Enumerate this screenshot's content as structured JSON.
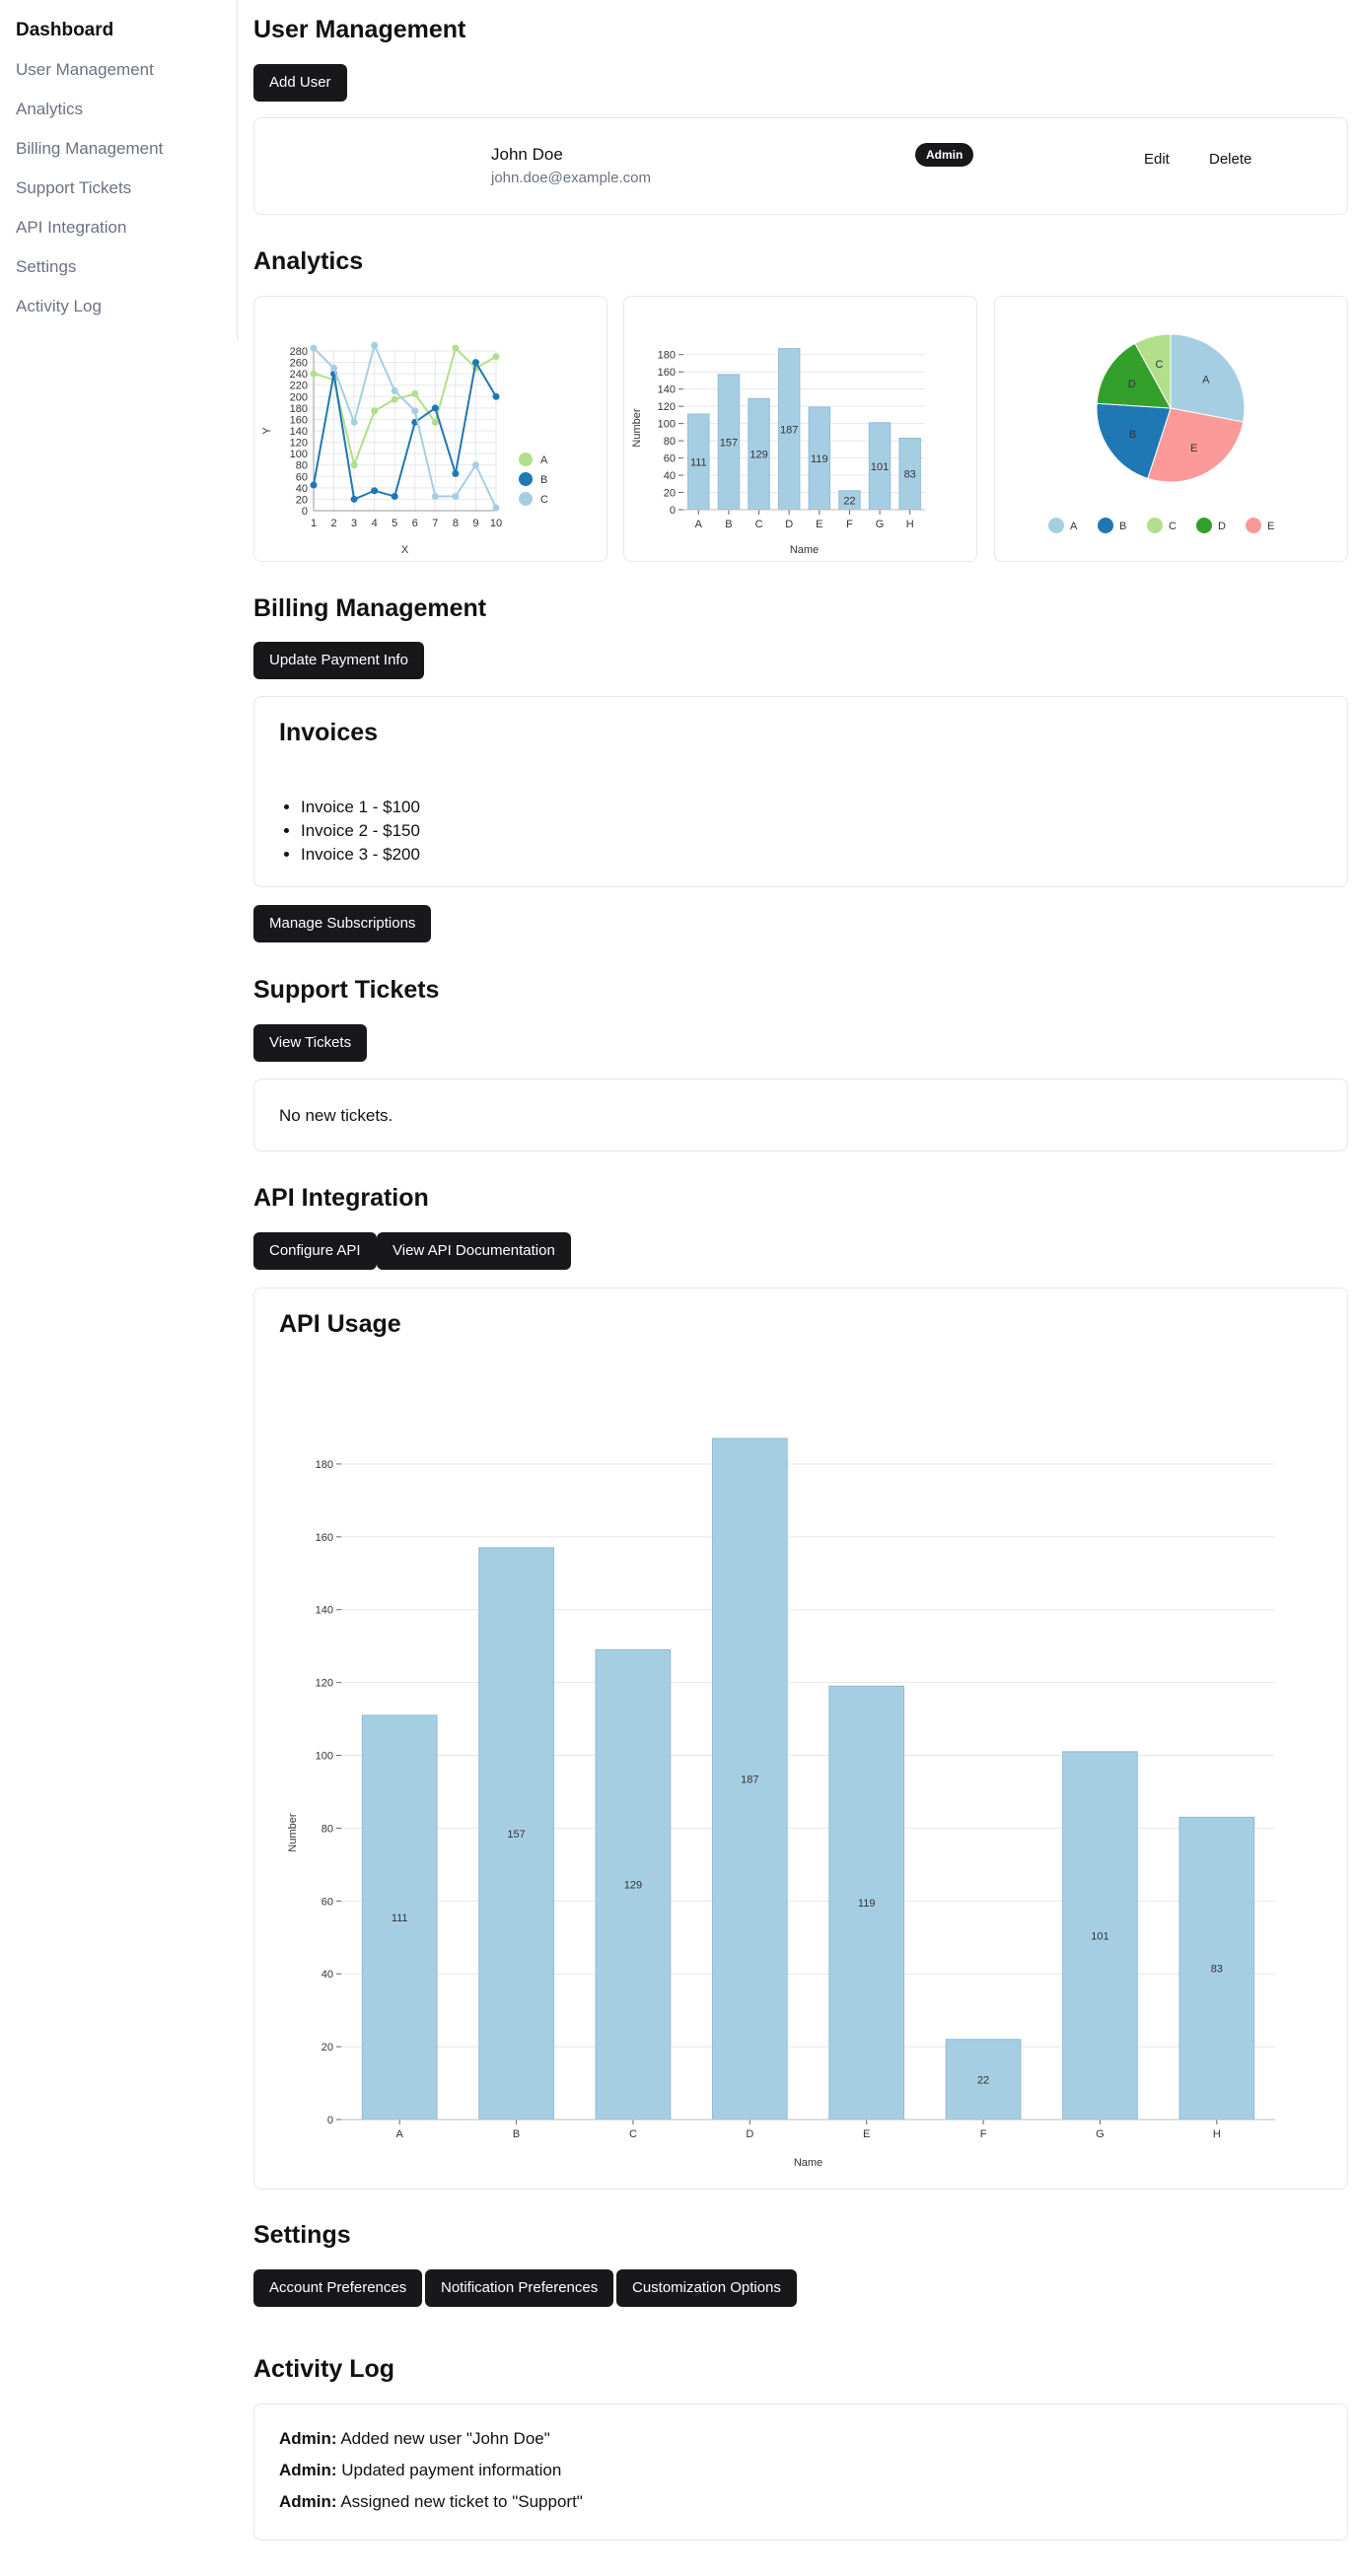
{
  "sidebar": {
    "brand": "Dashboard",
    "items": [
      {
        "label": "User Management"
      },
      {
        "label": "Analytics"
      },
      {
        "label": "Billing Management"
      },
      {
        "label": "Support Tickets"
      },
      {
        "label": "API Integration"
      },
      {
        "label": "Settings"
      },
      {
        "label": "Activity Log"
      }
    ]
  },
  "user_management": {
    "title": "User Management",
    "add_user_label": "Add User",
    "user": {
      "name": "John Doe",
      "email": "john.doe@example.com",
      "role": "Admin",
      "edit_label": "Edit",
      "delete_label": "Delete"
    }
  },
  "analytics": {
    "title": "Analytics"
  },
  "billing": {
    "title": "Billing Management",
    "update_payment_label": "Update Payment Info",
    "invoices_title": "Invoices",
    "invoices": [
      "Invoice 1 - $100",
      "Invoice 2 - $150",
      "Invoice 3 - $200"
    ],
    "manage_subscriptions_label": "Manage Subscriptions"
  },
  "support": {
    "title": "Support Tickets",
    "view_tickets_label": "View Tickets",
    "status_text": "No new tickets."
  },
  "api": {
    "title": "API Integration",
    "configure_label": "Configure API",
    "docs_label": "View API Documentation",
    "usage_title": "API Usage"
  },
  "settings": {
    "title": "Settings",
    "buttons": [
      "Account Preferences",
      "Notification Preferences",
      "Customization Options"
    ]
  },
  "activity": {
    "title": "Activity Log",
    "entries": [
      {
        "actor": "Admin:",
        "text": "Added new user \"John Doe\""
      },
      {
        "actor": "Admin:",
        "text": "Updated payment information"
      },
      {
        "actor": "Admin:",
        "text": "Assigned new ticket to \"Support\""
      }
    ]
  },
  "colors": {
    "light_blue": "#a6cee3",
    "dark_blue": "#1f78b4",
    "light_green": "#b2df8a",
    "dark_green": "#33a02c",
    "pink": "#fb9a99",
    "button_bg": "#18181b"
  },
  "chart_data": [
    {
      "type": "line",
      "xlabel": "X",
      "ylabel": "Y",
      "x": [
        1,
        2,
        3,
        4,
        5,
        6,
        7,
        8,
        9,
        10
      ],
      "ylim": [
        0,
        280
      ],
      "yticks": [
        0,
        20,
        40,
        60,
        80,
        100,
        120,
        140,
        160,
        180,
        200,
        220,
        240,
        260,
        280
      ],
      "series": [
        {
          "name": "A",
          "color": "#b2df8a",
          "values": [
            240,
            230,
            80,
            175,
            195,
            205,
            155,
            285,
            250,
            270
          ]
        },
        {
          "name": "B",
          "color": "#1f78b4",
          "values": [
            45,
            240,
            20,
            35,
            25,
            155,
            180,
            65,
            260,
            200
          ]
        },
        {
          "name": "C",
          "color": "#a6cee3",
          "values": [
            285,
            250,
            155,
            295,
            210,
            175,
            25,
            25,
            80,
            5
          ]
        }
      ],
      "legend": "right"
    },
    {
      "type": "bar",
      "xlabel": "Name",
      "ylabel": "Number",
      "categories": [
        "A",
        "B",
        "C",
        "D",
        "E",
        "F",
        "G",
        "H"
      ],
      "values": [
        111,
        157,
        129,
        187,
        119,
        22,
        101,
        83
      ],
      "ylim": [
        0,
        190
      ],
      "yticks": [
        0,
        20,
        40,
        60,
        80,
        100,
        120,
        140,
        160,
        180
      ],
      "color": "#a6cee3"
    },
    {
      "type": "pie",
      "slices": [
        {
          "label": "A",
          "value": 28,
          "color": "#a6cee3"
        },
        {
          "label": "E",
          "value": 27,
          "color": "#fb9a99"
        },
        {
          "label": "B",
          "value": 21,
          "color": "#1f78b4"
        },
        {
          "label": "D",
          "value": 16,
          "color": "#33a02c"
        },
        {
          "label": "C",
          "value": 8,
          "color": "#b2df8a"
        }
      ],
      "legend": [
        {
          "label": "A",
          "color": "#a6cee3"
        },
        {
          "label": "B",
          "color": "#1f78b4"
        },
        {
          "label": "C",
          "color": "#b2df8a"
        },
        {
          "label": "D",
          "color": "#33a02c"
        },
        {
          "label": "E",
          "color": "#fb9a99"
        }
      ],
      "legend_placement": "bottom"
    },
    {
      "type": "bar",
      "title": "API Usage",
      "xlabel": "Name",
      "ylabel": "Number",
      "categories": [
        "A",
        "B",
        "C",
        "D",
        "E",
        "F",
        "G",
        "H"
      ],
      "values": [
        111,
        157,
        129,
        187,
        119,
        22,
        101,
        83
      ],
      "ylim": [
        0,
        190
      ],
      "yticks": [
        0,
        20,
        40,
        60,
        80,
        100,
        120,
        140,
        160,
        180
      ],
      "color": "#a6cee3"
    }
  ]
}
